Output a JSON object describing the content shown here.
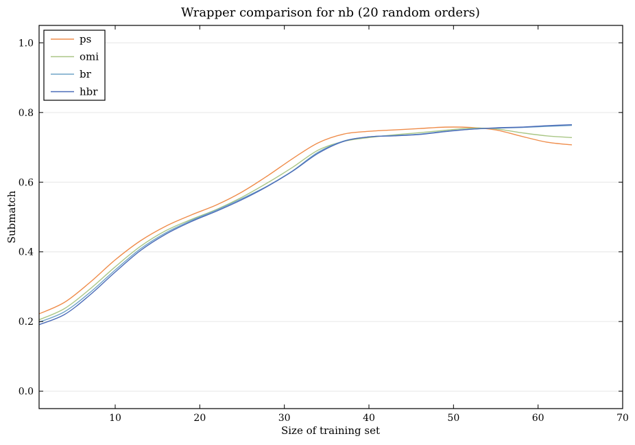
{
  "chart_data": {
    "type": "line",
    "title": "Wrapper comparison for nb (20 random orders)",
    "xlabel": "Size of training set",
    "ylabel": "Submatch",
    "xlim": [
      1,
      70
    ],
    "ylim": [
      -0.05,
      1.05
    ],
    "xticks": [
      10,
      20,
      30,
      40,
      50,
      60,
      70
    ],
    "yticks": [
      0.0,
      0.2,
      0.4,
      0.6,
      0.8,
      1.0
    ],
    "xtick_labels": [
      "10",
      "20",
      "30",
      "40",
      "50",
      "60",
      "70"
    ],
    "ytick_labels": [
      "0.0",
      "0.2",
      "0.4",
      "0.6",
      "0.8",
      "1.0"
    ],
    "grid": "horizontal",
    "legend": "top-left",
    "x": [
      1,
      4,
      7,
      10,
      13,
      16,
      19,
      22,
      25,
      28,
      31,
      34,
      37,
      40,
      43,
      46,
      49,
      52,
      55,
      58,
      61,
      64
    ],
    "series": [
      {
        "name": "ps",
        "color": "#ef8c4a",
        "values": [
          0.222,
          0.255,
          0.312,
          0.377,
          0.432,
          0.474,
          0.506,
          0.535,
          0.572,
          0.618,
          0.668,
          0.713,
          0.738,
          0.746,
          0.75,
          0.754,
          0.758,
          0.757,
          0.75,
          0.732,
          0.715,
          0.707
        ]
      },
      {
        "name": "omi",
        "color": "#a9c685",
        "values": [
          0.205,
          0.237,
          0.293,
          0.357,
          0.416,
          0.461,
          0.493,
          0.522,
          0.557,
          0.598,
          0.643,
          0.692,
          0.717,
          0.728,
          0.736,
          0.742,
          0.749,
          0.755,
          0.753,
          0.742,
          0.733,
          0.728
        ]
      },
      {
        "name": "br",
        "color": "#6fa3c7",
        "values": [
          0.198,
          0.228,
          0.283,
          0.348,
          0.409,
          0.455,
          0.49,
          0.52,
          0.553,
          0.589,
          0.633,
          0.686,
          0.718,
          0.73,
          0.734,
          0.738,
          0.746,
          0.752,
          0.755,
          0.757,
          0.76,
          0.763
        ]
      },
      {
        "name": "hbr",
        "color": "#4a6bb8",
        "values": [
          0.191,
          0.22,
          0.276,
          0.342,
          0.404,
          0.451,
          0.487,
          0.517,
          0.55,
          0.588,
          0.632,
          0.683,
          0.717,
          0.73,
          0.733,
          0.737,
          0.745,
          0.752,
          0.756,
          0.758,
          0.762,
          0.765
        ]
      }
    ]
  }
}
